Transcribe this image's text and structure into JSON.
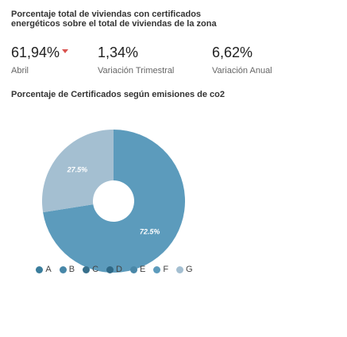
{
  "header": {
    "title": "Porcentaje total de viviendas con certificados energéticos sobre el total de viviendas de la zona"
  },
  "kpis": [
    {
      "value": "61,94%",
      "label": "Abril"
    },
    {
      "value": "1,34%",
      "label": "Variación Trimestral"
    },
    {
      "value": "6,62%",
      "label": "Variación Anual"
    }
  ],
  "chart_data": {
    "type": "pie",
    "title": "Porcentaje de Certificados según emisiones de co2",
    "categories": [
      "A",
      "B",
      "C",
      "D",
      "E",
      "F",
      "G"
    ],
    "values": [
      0,
      0,
      0,
      0,
      0,
      72.5,
      27.5
    ],
    "value_labels": [
      null,
      null,
      null,
      null,
      null,
      "72.5%",
      "27.5%"
    ],
    "colors": [
      "#3a7d9c",
      "#4787a8",
      "#376f8b",
      "#2f6987",
      "#4a88a8",
      "#5c9bbc",
      "#a4bfd1"
    ],
    "hole": true
  }
}
